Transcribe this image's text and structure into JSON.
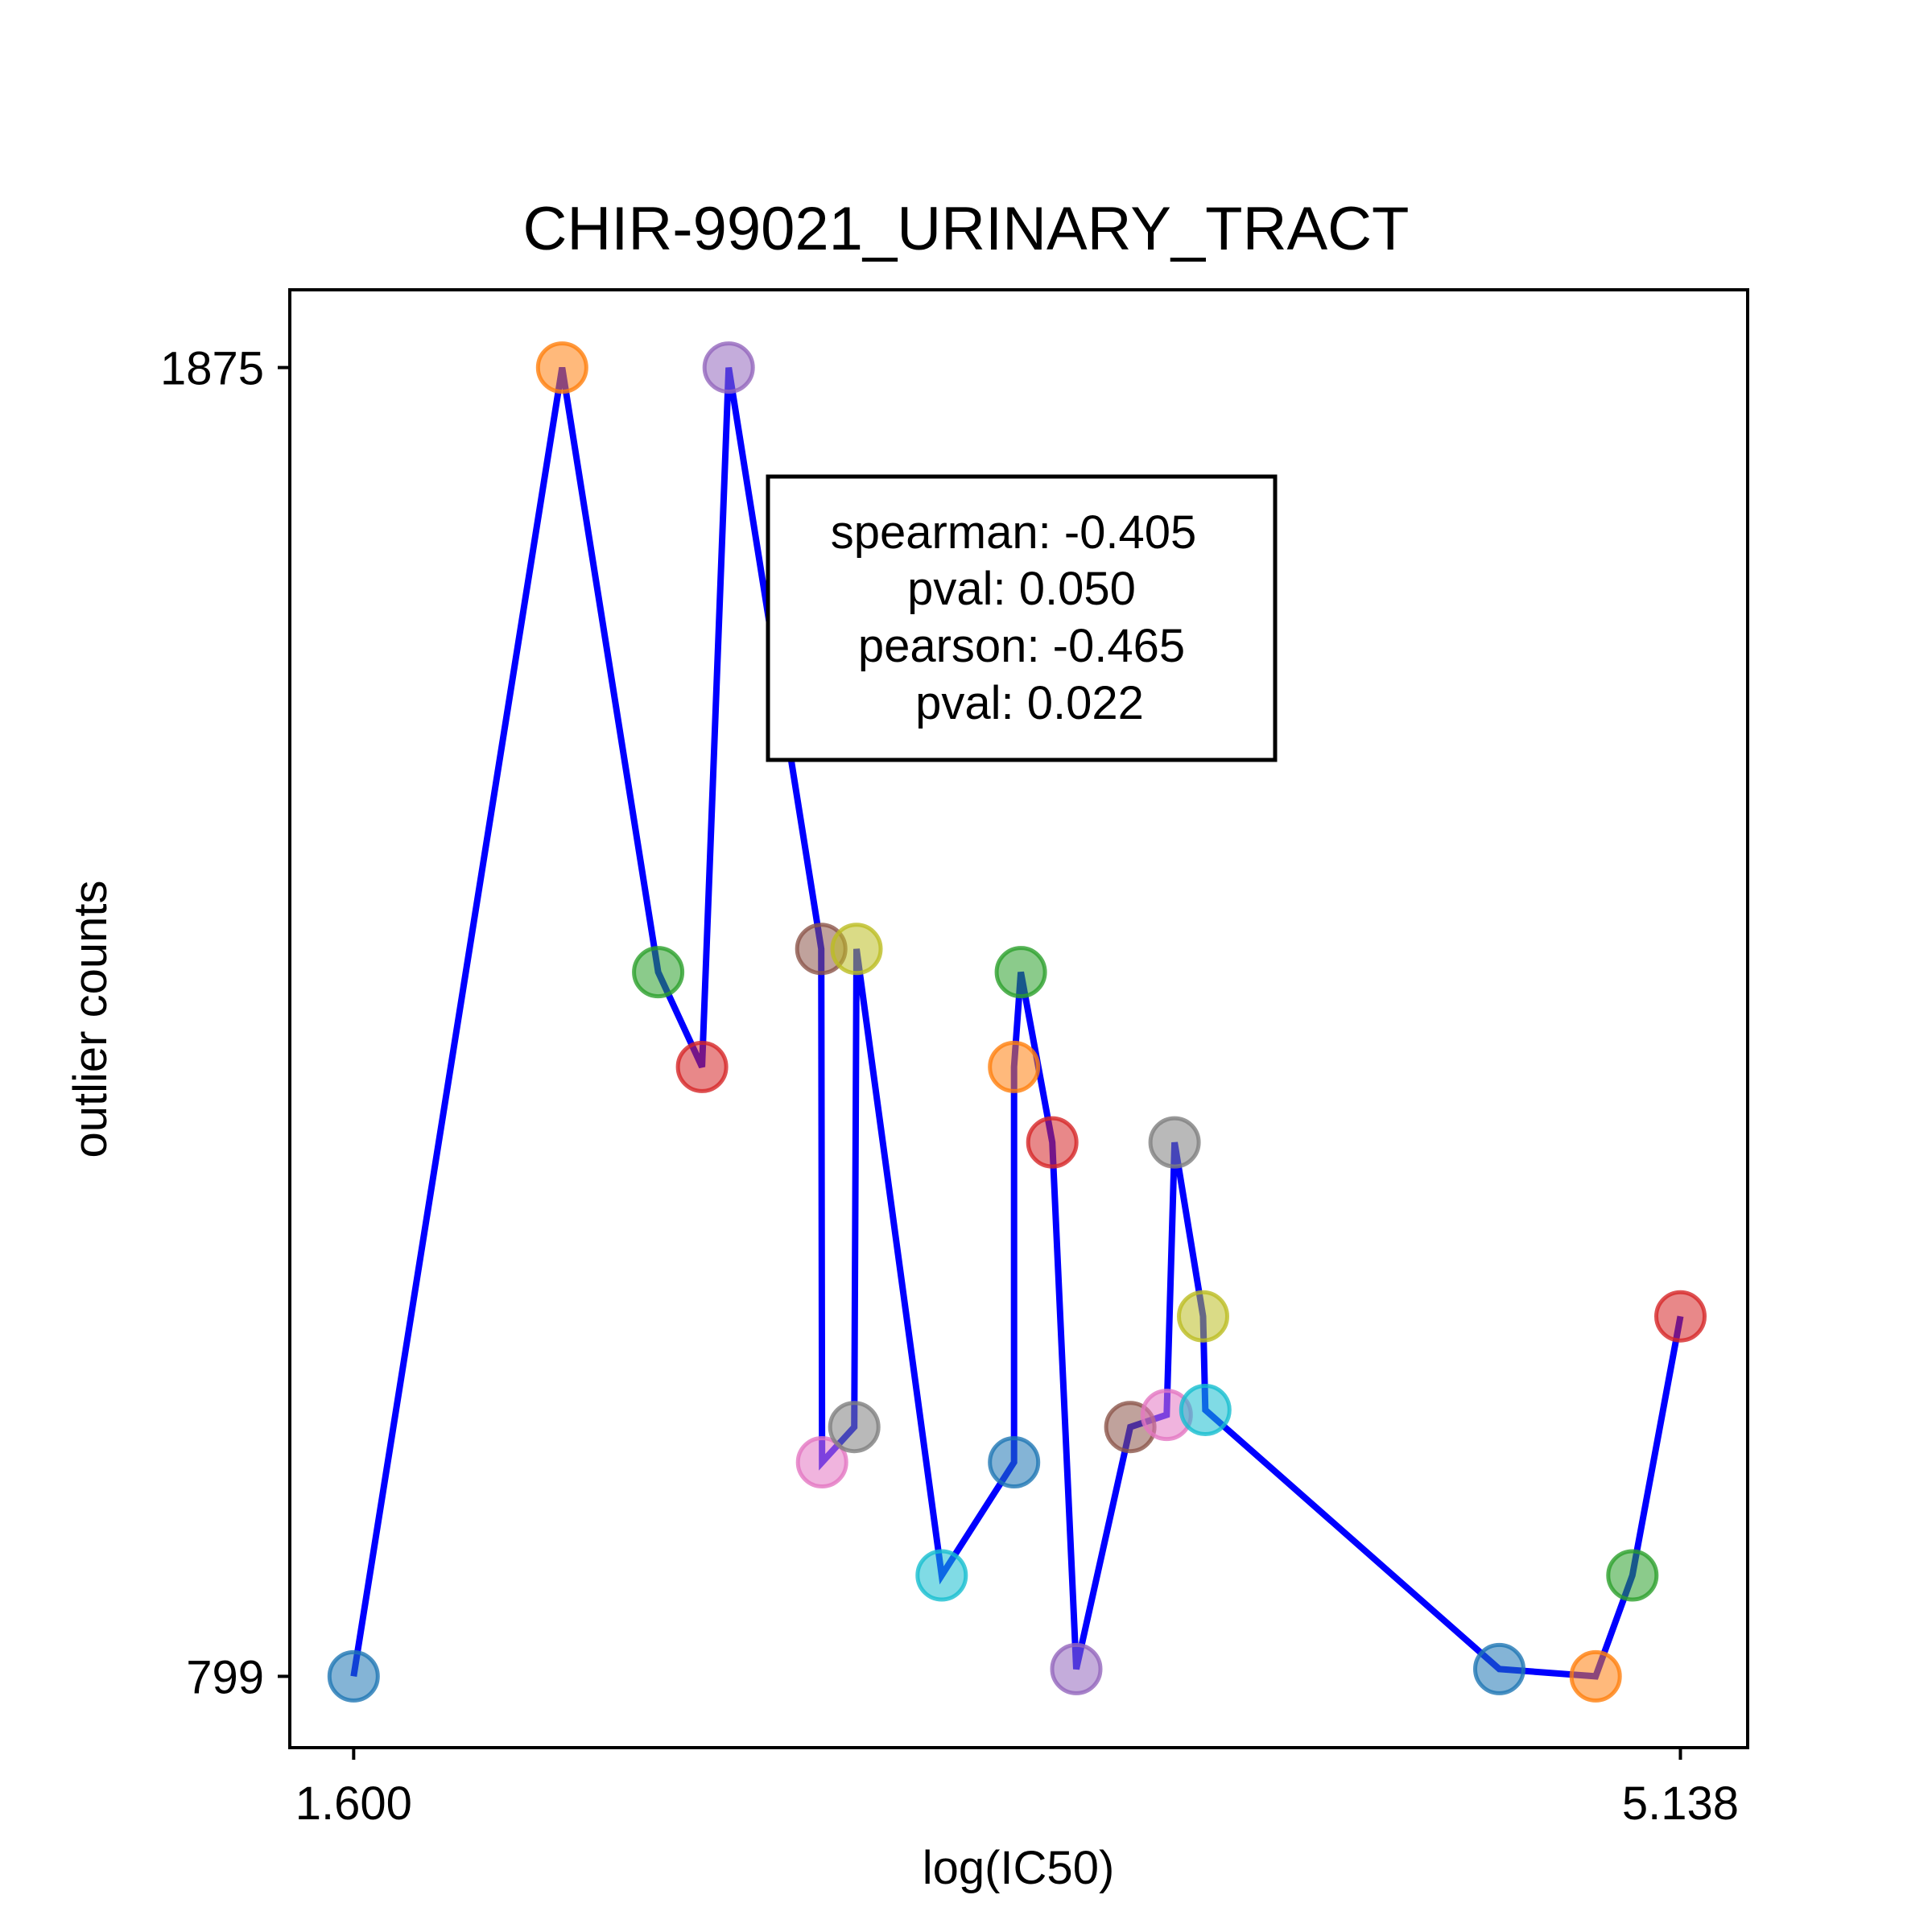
{
  "chart_data": {
    "type": "scatter",
    "title": "CHIR-99021_URINARY_TRACT",
    "xlabel": "log(IC50)",
    "ylabel": "outlier counts",
    "xlim": [
      1.434,
      5.313
    ],
    "ylim": [
      741.7,
      1937.6
    ],
    "xticks": [
      1.6,
      5.138
    ],
    "xtick_labels": [
      "1.600",
      "5.138"
    ],
    "yticks": [
      799,
      1875
    ],
    "ytick_labels": [
      "799",
      "1875"
    ],
    "grid": false,
    "legend": "none",
    "line_color": "#0000ff",
    "annotation": {
      "lines": [
        "spearman: -0.405",
        "pval: 0.050",
        "pearson: -0.465",
        "pval: 0.022"
      ],
      "placement": "upper-center"
    },
    "points": [
      {
        "x": 1.6,
        "y": 799,
        "color": "#1f77b4"
      },
      {
        "x": 2.156,
        "y": 1875,
        "color": "#ff7f0e"
      },
      {
        "x": 2.412,
        "y": 1378,
        "color": "#2ca02c"
      },
      {
        "x": 2.529,
        "y": 1300,
        "color": "#d62728"
      },
      {
        "x": 2.6,
        "y": 1875,
        "color": "#9467bd"
      },
      {
        "x": 2.847,
        "y": 1397,
        "color": "#8c564b"
      },
      {
        "x": 2.849,
        "y": 975,
        "color": "#e377c2"
      },
      {
        "x": 2.935,
        "y": 1004,
        "color": "#7f7f7f"
      },
      {
        "x": 2.941,
        "y": 1397,
        "color": "#bcbd22"
      },
      {
        "x": 3.168,
        "y": 882,
        "color": "#17becf"
      },
      {
        "x": 3.361,
        "y": 975,
        "color": "#1f77b4"
      },
      {
        "x": 3.361,
        "y": 1300,
        "color": "#ff7f0e"
      },
      {
        "x": 3.379,
        "y": 1378,
        "color": "#2ca02c"
      },
      {
        "x": 3.463,
        "y": 1238,
        "color": "#d62728"
      },
      {
        "x": 3.527,
        "y": 805,
        "color": "#9467bd"
      },
      {
        "x": 3.671,
        "y": 1004,
        "color": "#8c564b"
      },
      {
        "x": 3.768,
        "y": 1014,
        "color": "#e377c2"
      },
      {
        "x": 3.789,
        "y": 1238,
        "color": "#7f7f7f"
      },
      {
        "x": 3.865,
        "y": 1095,
        "color": "#bcbd22"
      },
      {
        "x": 3.871,
        "y": 1018,
        "color": "#17becf"
      },
      {
        "x": 4.655,
        "y": 805,
        "color": "#1f77b4"
      },
      {
        "x": 4.912,
        "y": 799,
        "color": "#ff7f0e"
      },
      {
        "x": 5.01,
        "y": 882,
        "color": "#2ca02c"
      },
      {
        "x": 5.138,
        "y": 1095,
        "color": "#d62728"
      }
    ]
  }
}
